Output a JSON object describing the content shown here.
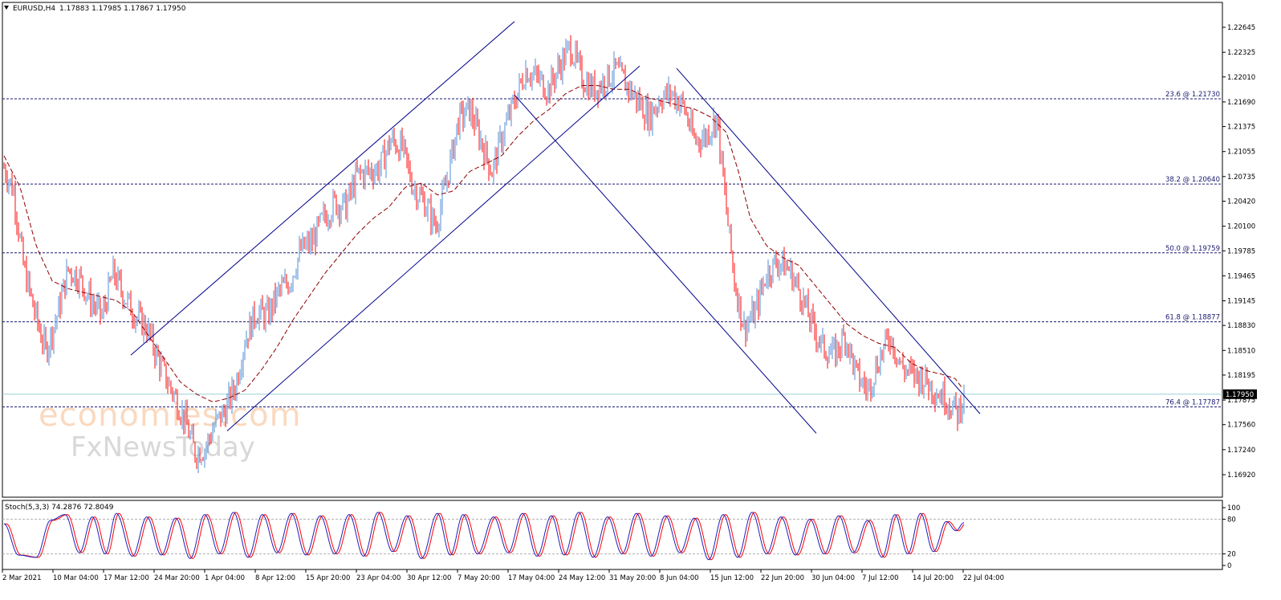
{
  "header": {
    "symbol": "EURUSD,H4",
    "ohlc": "1.17883 1.17985 1.17867 1.17950"
  },
  "watermark": {
    "line1": "economies.com",
    "line2": "FxNewsToday"
  },
  "chart_data": [
    {
      "type": "candlestick",
      "title": "EURUSD,H4",
      "ylim": [
        1.1692,
        1.2275
      ],
      "y_ticks": [
        "1.22645",
        "1.22325",
        "1.22010",
        "1.21690",
        "1.21375",
        "1.21055",
        "1.20735",
        "1.20420",
        "1.20100",
        "1.19785",
        "1.19465",
        "1.19145",
        "1.18830",
        "1.18510",
        "1.18195",
        "1.17875",
        "1.17560",
        "1.17240",
        "1.16920"
      ],
      "x_ticks": [
        "2 Mar 2021",
        "10 Mar 04:00",
        "17 Mar 12:00",
        "24 Mar 20:00",
        "1 Apr 04:00",
        "8 Apr 12:00",
        "15 Apr 20:00",
        "23 Apr 04:00",
        "30 Apr 12:00",
        "7 May 20:00",
        "17 May 04:00",
        "24 May 12:00",
        "31 May 20:00",
        "8 Jun 04:00",
        "15 Jun 12:00",
        "22 Jun 20:00",
        "30 Jun 04:00",
        "7 Jul 12:00",
        "14 Jul 20:00",
        "22 Jul 04:00"
      ],
      "price_path": [
        [
          0,
          1.2085
        ],
        [
          12,
          1.2055
        ],
        [
          24,
          1.196
        ],
        [
          38,
          1.19
        ],
        [
          52,
          1.185
        ],
        [
          66,
          1.1895
        ],
        [
          80,
          1.1955
        ],
        [
          93,
          1.1945
        ],
        [
          108,
          1.1915
        ],
        [
          122,
          1.1895
        ],
        [
          136,
          1.195
        ],
        [
          150,
          1.192
        ],
        [
          164,
          1.1895
        ],
        [
          178,
          1.188
        ],
        [
          190,
          1.1845
        ],
        [
          202,
          1.1815
        ],
        [
          214,
          1.179
        ],
        [
          226,
          1.176
        ],
        [
          238,
          1.172
        ],
        [
          250,
          1.1725
        ],
        [
          262,
          1.1755
        ],
        [
          276,
          1.1775
        ],
        [
          288,
          1.1805
        ],
        [
          300,
          1.1865
        ],
        [
          314,
          1.19
        ],
        [
          328,
          1.1895
        ],
        [
          342,
          1.1925
        ],
        [
          356,
          1.194
        ],
        [
          370,
          1.198
        ],
        [
          384,
          1.199
        ],
        [
          398,
          1.202
        ],
        [
          412,
          1.204
        ],
        [
          426,
          1.2035
        ],
        [
          440,
          1.2075
        ],
        [
          454,
          1.208
        ],
        [
          468,
          1.2085
        ],
        [
          482,
          1.212
        ],
        [
          496,
          1.211
        ],
        [
          510,
          1.206
        ],
        [
          524,
          1.204
        ],
        [
          538,
          1.201
        ],
        [
          552,
          1.207
        ],
        [
          566,
          1.2145
        ],
        [
          580,
          1.216
        ],
        [
          594,
          1.212
        ],
        [
          608,
          1.208
        ],
        [
          622,
          1.213
        ],
        [
          636,
          1.217
        ],
        [
          650,
          1.221
        ],
        [
          664,
          1.22
        ],
        [
          678,
          1.2185
        ],
        [
          692,
          1.2215
        ],
        [
          706,
          1.224
        ],
        [
          720,
          1.22
        ],
        [
          734,
          1.2185
        ],
        [
          748,
          1.2195
        ],
        [
          762,
          1.221
        ],
        [
          776,
          1.219
        ],
        [
          790,
          1.217
        ],
        [
          804,
          1.215
        ],
        [
          818,
          1.2175
        ],
        [
          832,
          1.218
        ],
        [
          846,
          1.2165
        ],
        [
          860,
          1.212
        ],
        [
          874,
          1.2125
        ],
        [
          888,
          1.215
        ],
        [
          900,
          1.203
        ],
        [
          910,
          1.194
        ],
        [
          922,
          1.188
        ],
        [
          936,
          1.19
        ],
        [
          950,
          1.195
        ],
        [
          964,
          1.1965
        ],
        [
          978,
          1.1955
        ],
        [
          992,
          1.1925
        ],
        [
          1006,
          1.1885
        ],
        [
          1020,
          1.1855
        ],
        [
          1034,
          1.1845
        ],
        [
          1048,
          1.187
        ],
        [
          1062,
          1.182
        ],
        [
          1076,
          1.18
        ],
        [
          1090,
          1.184
        ],
        [
          1104,
          1.187
        ],
        [
          1118,
          1.183
        ],
        [
          1132,
          1.182
        ],
        [
          1146,
          1.1815
        ],
        [
          1160,
          1.18
        ],
        [
          1174,
          1.179
        ],
        [
          1188,
          1.177
        ],
        [
          1196,
          1.1795
        ]
      ],
      "ma_path": [
        [
          0,
          1.21
        ],
        [
          20,
          1.206
        ],
        [
          40,
          1.1985
        ],
        [
          60,
          1.194
        ],
        [
          80,
          1.193
        ],
        [
          100,
          1.1925
        ],
        [
          120,
          1.192
        ],
        [
          140,
          1.1915
        ],
        [
          160,
          1.19
        ],
        [
          180,
          1.187
        ],
        [
          200,
          1.184
        ],
        [
          220,
          1.181
        ],
        [
          240,
          1.1795
        ],
        [
          260,
          1.1785
        ],
        [
          280,
          1.179
        ],
        [
          300,
          1.18
        ],
        [
          320,
          1.1825
        ],
        [
          340,
          1.1855
        ],
        [
          360,
          1.189
        ],
        [
          380,
          1.192
        ],
        [
          400,
          1.195
        ],
        [
          420,
          1.1975
        ],
        [
          440,
          1.2
        ],
        [
          460,
          1.202
        ],
        [
          480,
          1.2035
        ],
        [
          500,
          1.206
        ],
        [
          520,
          1.2065
        ],
        [
          540,
          1.205
        ],
        [
          560,
          1.2055
        ],
        [
          580,
          1.208
        ],
        [
          600,
          1.209
        ],
        [
          620,
          1.21
        ],
        [
          640,
          1.2125
        ],
        [
          660,
          1.2145
        ],
        [
          680,
          1.216
        ],
        [
          700,
          1.218
        ],
        [
          720,
          1.219
        ],
        [
          740,
          1.219
        ],
        [
          760,
          1.2185
        ],
        [
          780,
          1.2185
        ],
        [
          800,
          1.2175
        ],
        [
          820,
          1.217
        ],
        [
          840,
          1.2165
        ],
        [
          860,
          1.216
        ],
        [
          880,
          1.215
        ],
        [
          900,
          1.213
        ],
        [
          915,
          1.208
        ],
        [
          930,
          1.202
        ],
        [
          950,
          1.1985
        ],
        [
          970,
          1.197
        ],
        [
          990,
          1.196
        ],
        [
          1010,
          1.1935
        ],
        [
          1030,
          1.191
        ],
        [
          1050,
          1.1885
        ],
        [
          1070,
          1.187
        ],
        [
          1090,
          1.186
        ],
        [
          1110,
          1.1855
        ],
        [
          1130,
          1.1835
        ],
        [
          1150,
          1.1825
        ],
        [
          1170,
          1.182
        ],
        [
          1185,
          1.1815
        ],
        [
          1196,
          1.18
        ]
      ],
      "ma_color": "#8b0000",
      "bull_color": "#6fa0dc",
      "bear_color": "#ff3333",
      "fibonacci": [
        {
          "label": "23.6 @ 1.21730",
          "value": 1.2173
        },
        {
          "label": "38.2 @ 1.20640",
          "value": 1.2064
        },
        {
          "label": "50.0 @ 1.19759",
          "value": 1.19759
        },
        {
          "label": "61.8 @ 1.18877",
          "value": 1.18877
        },
        {
          "label": "76.4 @ 1.17787",
          "value": 1.17787
        }
      ],
      "fib_color": "#191970",
      "channels": [
        {
          "name": "rising-channel-upper",
          "from": [
            158,
            1.1845
          ],
          "to": [
            636,
            1.2272
          ]
        },
        {
          "name": "rising-channel-lower",
          "from": [
            278,
            1.1748
          ],
          "to": [
            792,
            1.2215
          ]
        },
        {
          "name": "falling-channel-upper",
          "from": [
            838,
            1.2212
          ],
          "to": [
            1216,
            1.177
          ]
        },
        {
          "name": "falling-channel-lower",
          "from": [
            636,
            1.2178
          ],
          "to": [
            1012,
            1.1745
          ]
        }
      ],
      "channel_color": "#00008b",
      "current_price": "1.17950",
      "current_price_value": 1.1795,
      "current_line_color": "#9ecfd6"
    },
    {
      "type": "line",
      "title": "Stoch(5,3,3) 74.2876 72.8049",
      "ylim": [
        0,
        100
      ],
      "y_ticks": [
        "100",
        "80",
        "20",
        "0"
      ],
      "levels": [
        80,
        20
      ],
      "series": [
        {
          "name": "main",
          "color": "#1e1ebe"
        },
        {
          "name": "signal",
          "color": "#ff0000"
        }
      ],
      "cycle_extremes": [
        [
          0,
          72
        ],
        [
          18,
          18
        ],
        [
          40,
          14
        ],
        [
          58,
          78
        ],
        [
          76,
          88
        ],
        [
          94,
          22
        ],
        [
          110,
          84
        ],
        [
          126,
          20
        ],
        [
          140,
          90
        ],
        [
          160,
          16
        ],
        [
          178,
          84
        ],
        [
          196,
          18
        ],
        [
          214,
          82
        ],
        [
          232,
          12
        ],
        [
          250,
          88
        ],
        [
          268,
          20
        ],
        [
          286,
          92
        ],
        [
          304,
          14
        ],
        [
          322,
          88
        ],
        [
          340,
          22
        ],
        [
          358,
          90
        ],
        [
          376,
          18
        ],
        [
          394,
          86
        ],
        [
          412,
          20
        ],
        [
          430,
          88
        ],
        [
          448,
          16
        ],
        [
          466,
          92
        ],
        [
          484,
          24
        ],
        [
          502,
          86
        ],
        [
          520,
          12
        ],
        [
          540,
          90
        ],
        [
          556,
          18
        ],
        [
          572,
          88
        ],
        [
          590,
          20
        ],
        [
          610,
          84
        ],
        [
          628,
          22
        ],
        [
          646,
          90
        ],
        [
          664,
          16
        ],
        [
          682,
          86
        ],
        [
          698,
          18
        ],
        [
          716,
          92
        ],
        [
          734,
          14
        ],
        [
          752,
          84
        ],
        [
          770,
          20
        ],
        [
          788,
          90
        ],
        [
          806,
          16
        ],
        [
          824,
          86
        ],
        [
          842,
          22
        ],
        [
          860,
          82
        ],
        [
          878,
          10
        ],
        [
          896,
          88
        ],
        [
          914,
          14
        ],
        [
          932,
          92
        ],
        [
          950,
          20
        ],
        [
          968,
          84
        ],
        [
          986,
          18
        ],
        [
          1004,
          80
        ],
        [
          1022,
          20
        ],
        [
          1040,
          86
        ],
        [
          1058,
          22
        ],
        [
          1076,
          78
        ],
        [
          1094,
          14
        ],
        [
          1110,
          88
        ],
        [
          1126,
          20
        ],
        [
          1142,
          90
        ],
        [
          1158,
          24
        ],
        [
          1174,
          76
        ],
        [
          1186,
          60
        ],
        [
          1196,
          74
        ]
      ]
    }
  ]
}
